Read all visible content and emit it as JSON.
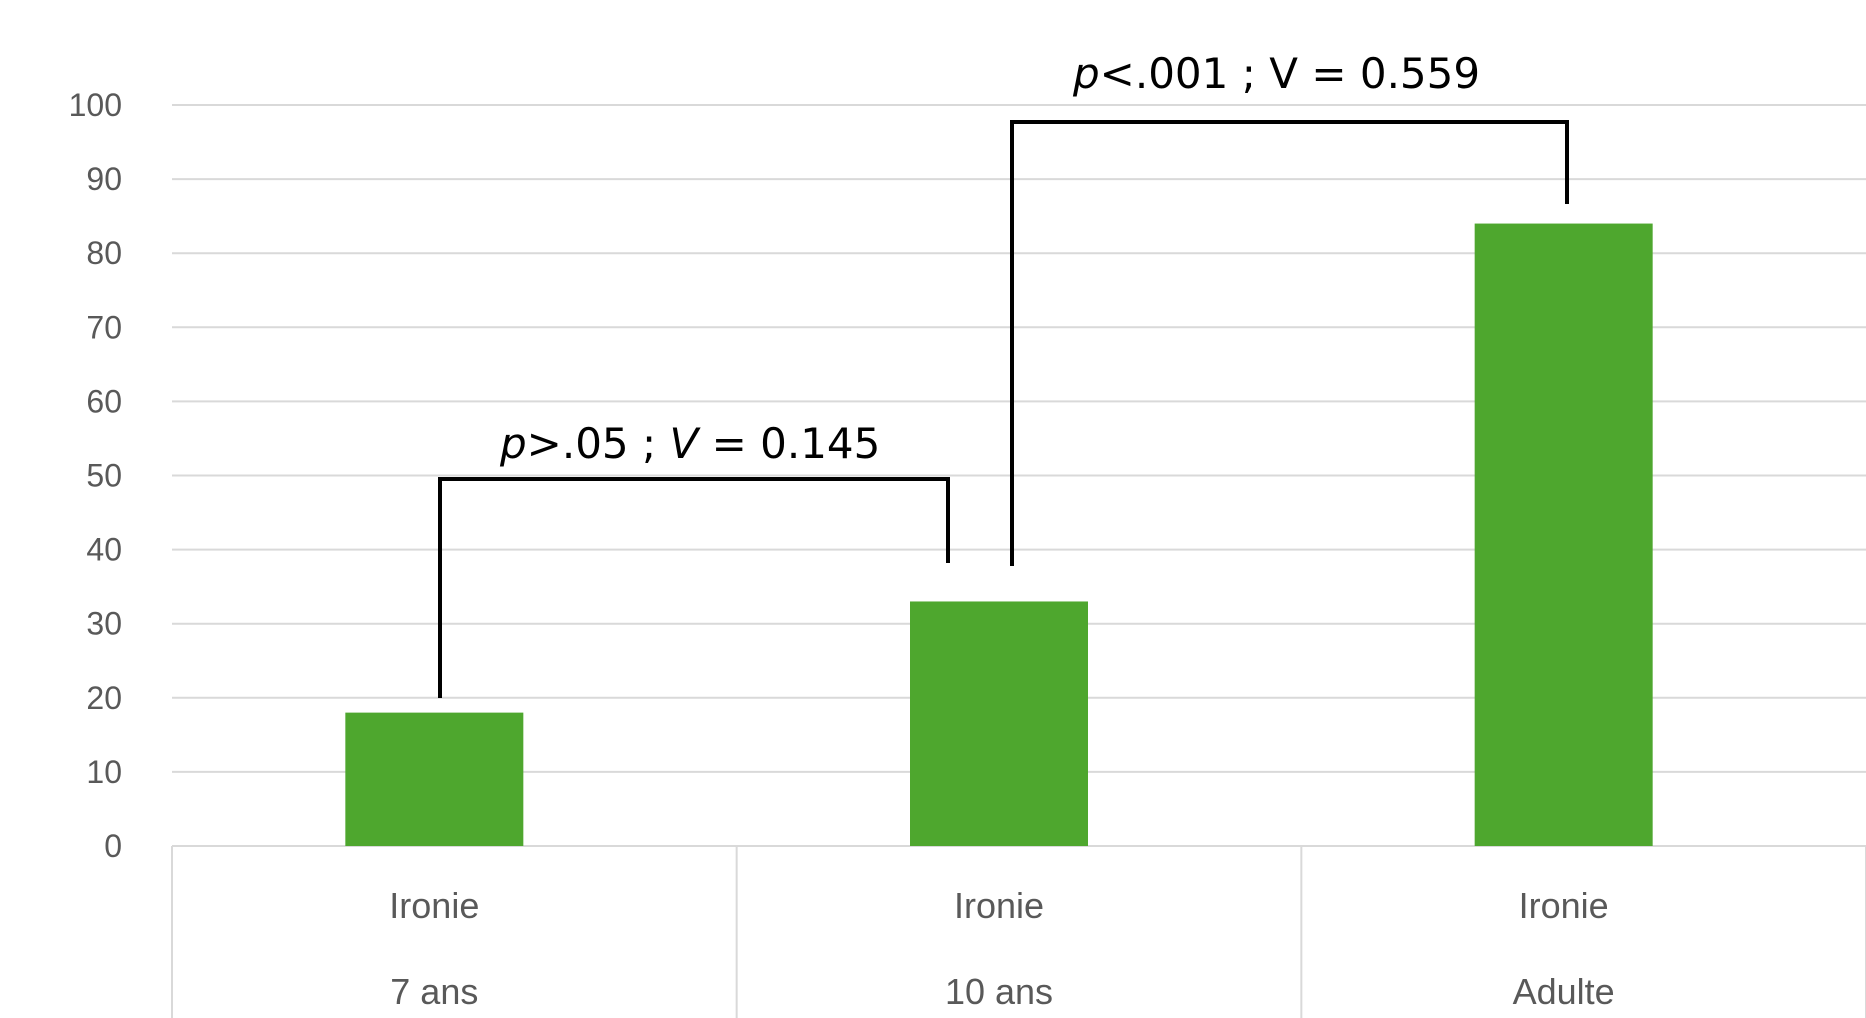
{
  "chart_data": {
    "type": "bar",
    "categories": [
      [
        "Ironie",
        "7 ans"
      ],
      [
        "Ironie",
        "10 ans"
      ],
      [
        "Ironie",
        "Adulte"
      ]
    ],
    "values": [
      18,
      33,
      84
    ],
    "ylim": [
      0,
      100
    ],
    "yticks": [
      0,
      10,
      20,
      30,
      40,
      50,
      60,
      70,
      80,
      90,
      100
    ],
    "grid": true,
    "bar_color": "#4ea72e",
    "annotations": [
      {
        "from": 0,
        "to": 1,
        "p": "p",
        "p_rest": ">.05 ; ",
        "v": "V",
        "v_rest": " = 0.145"
      },
      {
        "from": 1,
        "to": 2,
        "p": "p",
        "p_rest": "<.001 ; V = 0.559",
        "v": "",
        "v_rest": ""
      }
    ]
  }
}
